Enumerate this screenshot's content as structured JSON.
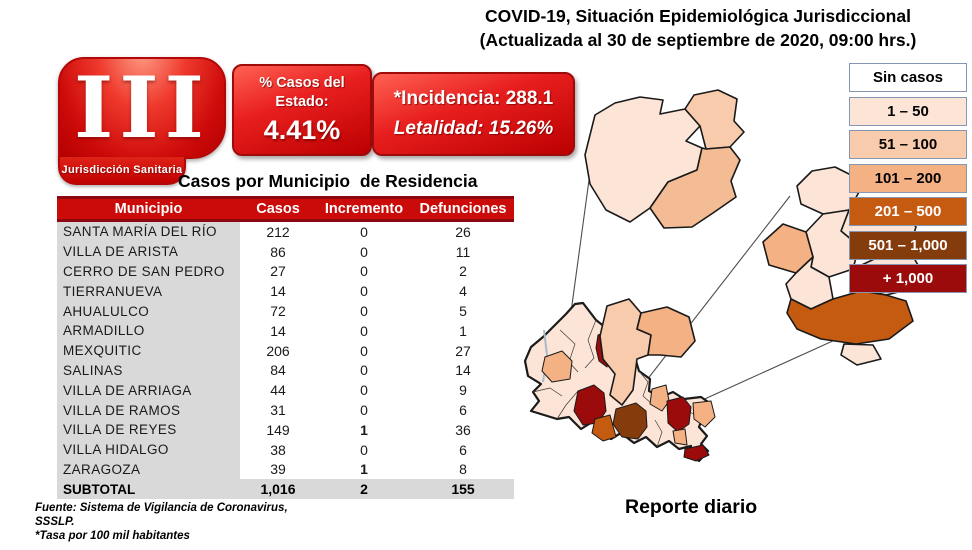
{
  "header": {
    "title_line1": "COVID-19, Situación Epidemiológica Jurisdiccional",
    "title_line2": "(Actualizada al 30 de septiembre de 2020, 09:00 hrs.)"
  },
  "badge": {
    "number": "III",
    "label": "Jurisdicción Sanitaria"
  },
  "stats": {
    "pct_label": "% Casos del Estado:",
    "pct_value": "4.41%",
    "incidencia": "*Incidencia: 288.1",
    "letalidad": "Letalidad: 15.26%"
  },
  "table": {
    "title": "Casos por Municipio  de Residencia",
    "columns": [
      "Municipio",
      "Casos",
      "Incremento",
      "Defunciones"
    ],
    "rows": [
      {
        "municipio": "SANTA MARÍA DEL RÍO",
        "casos": "212",
        "incremento": "0",
        "defunciones": "26",
        "bold_incremento": false
      },
      {
        "municipio": "VILLA DE ARISTA",
        "casos": "86",
        "incremento": "0",
        "defunciones": "11",
        "bold_incremento": false
      },
      {
        "municipio": "CERRO DE SAN PEDRO",
        "casos": "27",
        "incremento": "0",
        "defunciones": "2",
        "bold_incremento": false
      },
      {
        "municipio": "TIERRANUEVA",
        "casos": "14",
        "incremento": "0",
        "defunciones": "4",
        "bold_incremento": false
      },
      {
        "municipio": "AHUALULCO",
        "casos": "72",
        "incremento": "0",
        "defunciones": "5",
        "bold_incremento": false
      },
      {
        "municipio": "ARMADILLO",
        "casos": "14",
        "incremento": "0",
        "defunciones": "1",
        "bold_incremento": false
      },
      {
        "municipio": "MEXQUITIC",
        "casos": "206",
        "incremento": "0",
        "defunciones": "27",
        "bold_incremento": false
      },
      {
        "municipio": "SALINAS",
        "casos": "84",
        "incremento": "0",
        "defunciones": "14",
        "bold_incremento": false
      },
      {
        "municipio": "VILLA DE ARRIAGA",
        "casos": "44",
        "incremento": "0",
        "defunciones": "9",
        "bold_incremento": false
      },
      {
        "municipio": "VILLA DE RAMOS",
        "casos": "31",
        "incremento": "0",
        "defunciones": "6",
        "bold_incremento": false
      },
      {
        "municipio": "VILLA DE REYES",
        "casos": "149",
        "incremento": "1",
        "defunciones": "36",
        "bold_incremento": true
      },
      {
        "municipio": "VILLA HIDALGO",
        "casos": "38",
        "incremento": "0",
        "defunciones": "6",
        "bold_incremento": false
      },
      {
        "municipio": "ZARAGOZA",
        "casos": "39",
        "incremento": "1",
        "defunciones": "8",
        "bold_incremento": true
      }
    ],
    "subtotal": {
      "municipio": "SUBTOTAL",
      "casos": "1,016",
      "incremento": "2",
      "defunciones": "155"
    }
  },
  "footnotes": {
    "line1": "Fuente: Sistema de Vigilancia  de Coronavirus,",
    "line2": "SSSLP.",
    "line3": "*Tasa por 100 mil habitantes"
  },
  "legend": {
    "items": [
      {
        "label": "Sin casos",
        "bg": "#ffffff",
        "fg": "#000000"
      },
      {
        "label": "1 – 50",
        "bg": "#fce4d6",
        "fg": "#000000"
      },
      {
        "label": "51 – 100",
        "bg": "#f8cbad",
        "fg": "#000000"
      },
      {
        "label": "101 – 200",
        "bg": "#f4b183",
        "fg": "#000000"
      },
      {
        "label": "201 – 500",
        "bg": "#c55a11",
        "fg": "#ffffff"
      },
      {
        "label": "501 – 1,000",
        "bg": "#843c0c",
        "fg": "#ffffff"
      },
      {
        "label": "+ 1,000",
        "bg": "#9c0b0b",
        "fg": "#ffffff"
      }
    ]
  },
  "map": {
    "caption": "Reporte diario"
  },
  "colors": {
    "header_red": "#cb0a0a",
    "table_gray": "#d9d9d9"
  }
}
